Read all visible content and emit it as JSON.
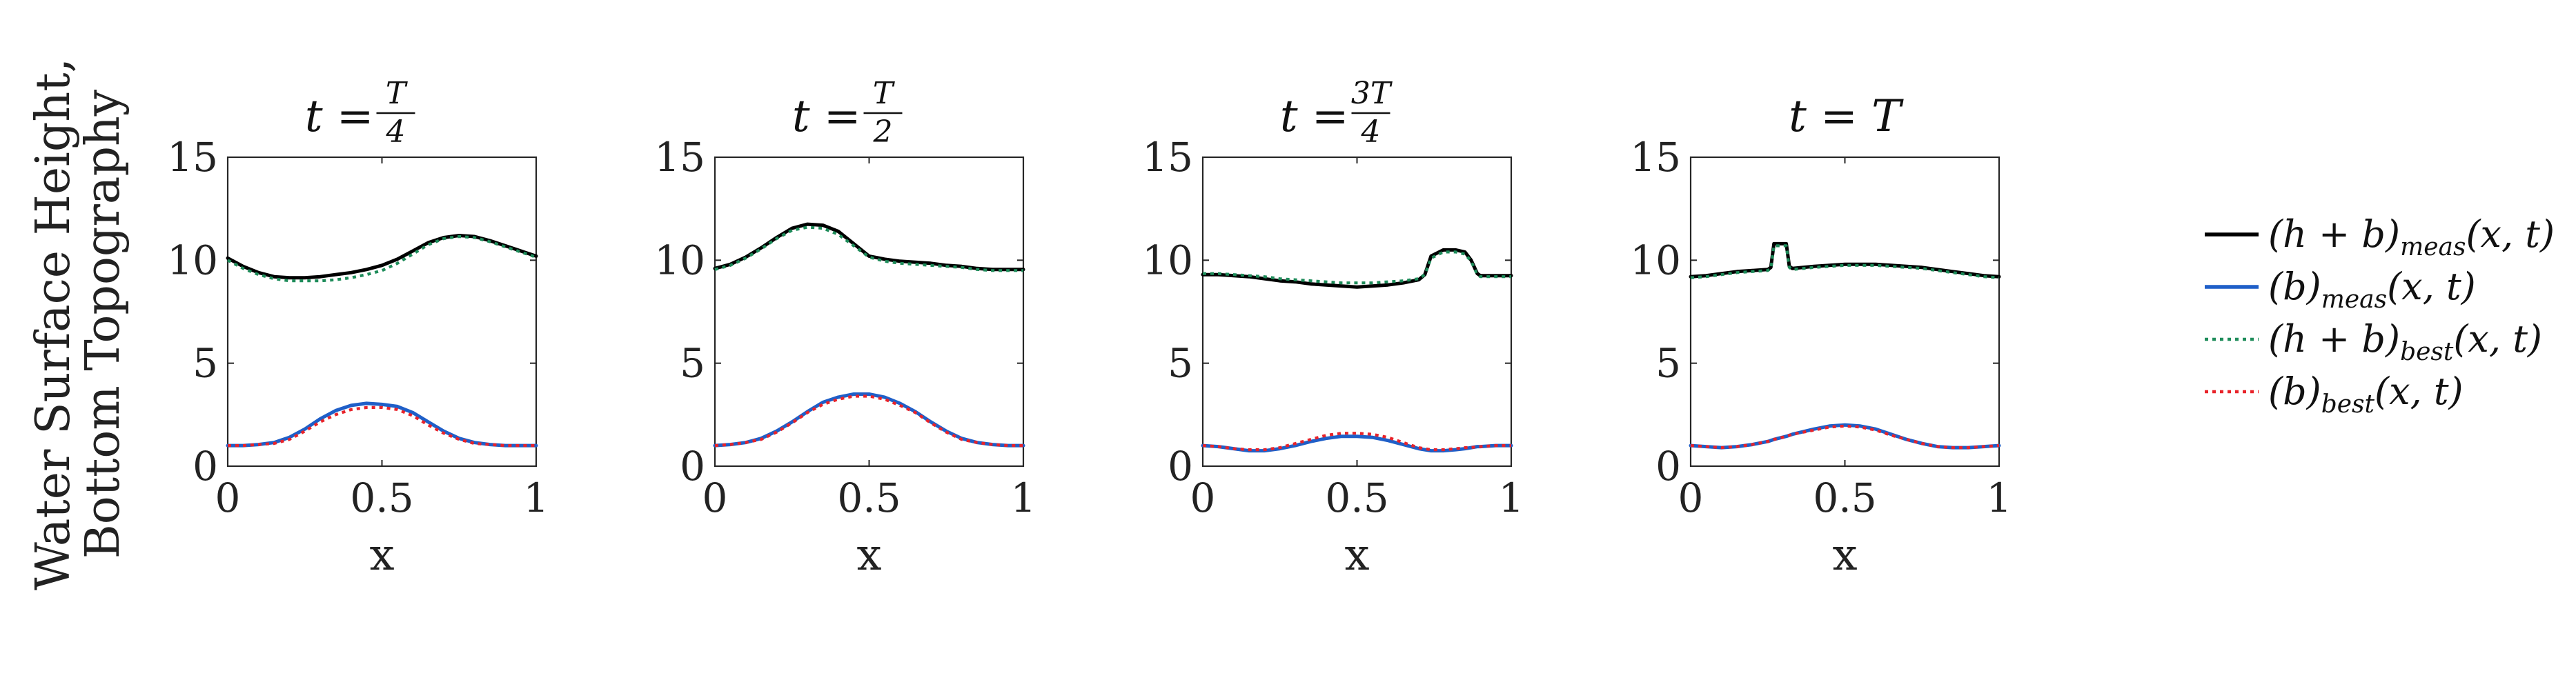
{
  "figure": {
    "ylabel_line1": "Water Surface Height,",
    "ylabel_line2": "Bottom Topography"
  },
  "colors": {
    "meas_total": "#000000",
    "meas_bottom": "#1f5fc8",
    "best_total": "#1e8c5a",
    "best_bottom": "#e8232a"
  },
  "legend": {
    "placement": "right",
    "entries": [
      {
        "key": "meas_total",
        "label": "(h + b)",
        "sub": "meas",
        "args": "(x, t)",
        "style": "solid"
      },
      {
        "key": "meas_bottom",
        "label": "(b)",
        "sub": "meas",
        "args": "(x, t)",
        "style": "solid"
      },
      {
        "key": "best_total",
        "label": "(h + b)",
        "sub": "best",
        "args": "(x, t)",
        "style": "dotted"
      },
      {
        "key": "best_bottom",
        "label": "(b)",
        "sub": "best",
        "args": "(x, t)",
        "style": "dotted"
      }
    ]
  },
  "chart_data": [
    {
      "type": "line",
      "title_prefix": "t =",
      "title_num": "T",
      "title_den": "4",
      "xlabel": "x",
      "xlim": [
        0,
        1
      ],
      "ylim": [
        0,
        15
      ],
      "xticks": [
        "0",
        "0.5",
        "1"
      ],
      "yticks": [
        "0",
        "5",
        "10",
        "15"
      ],
      "x": [
        0,
        0.05,
        0.1,
        0.15,
        0.2,
        0.25,
        0.3,
        0.35,
        0.4,
        0.45,
        0.5,
        0.55,
        0.6,
        0.65,
        0.7,
        0.75,
        0.8,
        0.85,
        0.9,
        0.95,
        1
      ],
      "series": [
        {
          "key": "meas_total",
          "values": [
            10.1,
            9.7,
            9.4,
            9.2,
            9.15,
            9.15,
            9.2,
            9.3,
            9.4,
            9.55,
            9.75,
            10.05,
            10.45,
            10.85,
            11.1,
            11.2,
            11.15,
            10.95,
            10.7,
            10.45,
            10.2
          ]
        },
        {
          "key": "meas_bottom",
          "values": [
            1,
            1,
            1.05,
            1.15,
            1.4,
            1.8,
            2.3,
            2.7,
            2.95,
            3.05,
            3.0,
            2.9,
            2.6,
            2.15,
            1.7,
            1.35,
            1.15,
            1.05,
            1,
            1,
            1
          ]
        },
        {
          "key": "best_total",
          "values": [
            10.0,
            9.6,
            9.3,
            9.1,
            9.0,
            9.0,
            9.0,
            9.05,
            9.15,
            9.3,
            9.5,
            9.85,
            10.3,
            10.75,
            11.05,
            11.15,
            11.1,
            10.9,
            10.65,
            10.4,
            10.15
          ]
        },
        {
          "key": "best_bottom",
          "values": [
            1,
            1,
            1.05,
            1.1,
            1.3,
            1.7,
            2.15,
            2.5,
            2.75,
            2.85,
            2.85,
            2.75,
            2.45,
            2.0,
            1.6,
            1.3,
            1.1,
            1.05,
            1,
            1,
            1
          ]
        }
      ]
    },
    {
      "type": "line",
      "title_prefix": "t =",
      "title_num": "T",
      "title_den": "2",
      "xlabel": "x",
      "xlim": [
        0,
        1
      ],
      "ylim": [
        0,
        15
      ],
      "xticks": [
        "0",
        "0.5",
        "1"
      ],
      "yticks": [
        "0",
        "5",
        "10",
        "15"
      ],
      "x": [
        0,
        0.05,
        0.1,
        0.15,
        0.2,
        0.25,
        0.3,
        0.35,
        0.4,
        0.45,
        0.5,
        0.55,
        0.6,
        0.65,
        0.7,
        0.75,
        0.8,
        0.85,
        0.9,
        0.95,
        1
      ],
      "series": [
        {
          "key": "meas_total",
          "values": [
            9.6,
            9.8,
            10.15,
            10.6,
            11.1,
            11.55,
            11.75,
            11.7,
            11.4,
            10.8,
            10.2,
            10.05,
            9.95,
            9.9,
            9.85,
            9.75,
            9.7,
            9.6,
            9.55,
            9.55,
            9.55
          ]
        },
        {
          "key": "meas_bottom",
          "values": [
            1,
            1.05,
            1.15,
            1.35,
            1.7,
            2.15,
            2.65,
            3.1,
            3.35,
            3.5,
            3.5,
            3.35,
            3.05,
            2.65,
            2.15,
            1.7,
            1.35,
            1.15,
            1.05,
            1,
            1
          ]
        },
        {
          "key": "best_total",
          "values": [
            9.55,
            9.75,
            10.1,
            10.55,
            11.05,
            11.45,
            11.6,
            11.55,
            11.25,
            10.7,
            10.15,
            9.95,
            9.85,
            9.8,
            9.75,
            9.7,
            9.65,
            9.55,
            9.5,
            9.5,
            9.5
          ]
        },
        {
          "key": "best_bottom",
          "values": [
            1,
            1.05,
            1.15,
            1.3,
            1.65,
            2.1,
            2.6,
            3.0,
            3.25,
            3.4,
            3.4,
            3.25,
            2.95,
            2.6,
            2.1,
            1.65,
            1.3,
            1.15,
            1.05,
            1,
            1
          ]
        }
      ]
    },
    {
      "type": "line",
      "title_prefix": "t =",
      "title_num": "3T",
      "title_den": "4",
      "xlabel": "x",
      "xlim": [
        0,
        1
      ],
      "ylim": [
        0,
        15
      ],
      "xticks": [
        "0",
        "0.5",
        "1"
      ],
      "yticks": [
        "0",
        "5",
        "10",
        "15"
      ],
      "x": [
        0,
        0.05,
        0.1,
        0.15,
        0.2,
        0.25,
        0.3,
        0.35,
        0.4,
        0.45,
        0.5,
        0.55,
        0.6,
        0.65,
        0.7,
        0.72,
        0.74,
        0.78,
        0.82,
        0.85,
        0.87,
        0.89,
        0.9,
        0.95,
        1
      ],
      "series": [
        {
          "key": "meas_total",
          "values": [
            9.3,
            9.3,
            9.25,
            9.2,
            9.1,
            9.0,
            8.95,
            8.85,
            8.8,
            8.75,
            8.7,
            8.75,
            8.8,
            8.9,
            9.05,
            9.3,
            10.2,
            10.5,
            10.5,
            10.4,
            10.0,
            9.35,
            9.25,
            9.25,
            9.25
          ]
        },
        {
          "key": "meas_bottom",
          "values": [
            1,
            0.95,
            0.85,
            0.75,
            0.75,
            0.85,
            1.0,
            1.2,
            1.35,
            1.45,
            1.45,
            1.4,
            1.25,
            1.05,
            0.85,
            0.8,
            0.75,
            0.75,
            0.8,
            0.85,
            0.9,
            0.95,
            0.95,
            1,
            1
          ]
        },
        {
          "key": "best_total",
          "values": [
            9.35,
            9.35,
            9.3,
            9.25,
            9.2,
            9.1,
            9.05,
            9.0,
            8.95,
            8.9,
            8.9,
            8.9,
            8.95,
            9.0,
            9.1,
            9.3,
            10.1,
            10.4,
            10.4,
            10.3,
            9.95,
            9.3,
            9.2,
            9.2,
            9.2
          ]
        },
        {
          "key": "best_bottom",
          "values": [
            1,
            0.95,
            0.85,
            0.8,
            0.8,
            0.9,
            1.1,
            1.3,
            1.5,
            1.6,
            1.6,
            1.55,
            1.4,
            1.15,
            0.9,
            0.85,
            0.8,
            0.8,
            0.85,
            0.9,
            0.9,
            0.95,
            0.95,
            1,
            1
          ]
        }
      ]
    },
    {
      "type": "line",
      "title_prefix": "t =",
      "title_num": "",
      "title_den": "",
      "title_value": "T",
      "xlabel": "x",
      "xlim": [
        0,
        1
      ],
      "ylim": [
        0,
        15
      ],
      "xticks": [
        "0",
        "0.5",
        "1"
      ],
      "yticks": [
        "0",
        "5",
        "10",
        "15"
      ],
      "x": [
        0,
        0.05,
        0.1,
        0.15,
        0.2,
        0.25,
        0.26,
        0.27,
        0.31,
        0.32,
        0.33,
        0.4,
        0.45,
        0.5,
        0.55,
        0.6,
        0.65,
        0.7,
        0.75,
        0.8,
        0.85,
        0.9,
        0.95,
        1
      ],
      "series": [
        {
          "key": "meas_total",
          "values": [
            9.2,
            9.25,
            9.35,
            9.45,
            9.5,
            9.55,
            9.65,
            10.8,
            10.8,
            9.7,
            9.6,
            9.7,
            9.75,
            9.8,
            9.8,
            9.8,
            9.75,
            9.7,
            9.65,
            9.55,
            9.45,
            9.35,
            9.25,
            9.2
          ]
        },
        {
          "key": "meas_bottom",
          "values": [
            1,
            0.95,
            0.9,
            0.95,
            1.05,
            1.2,
            1.25,
            1.3,
            1.45,
            1.5,
            1.55,
            1.8,
            1.95,
            2.0,
            1.95,
            1.8,
            1.55,
            1.3,
            1.1,
            0.95,
            0.9,
            0.9,
            0.95,
            1
          ]
        },
        {
          "key": "best_total",
          "values": [
            9.15,
            9.2,
            9.3,
            9.4,
            9.45,
            9.5,
            9.6,
            10.7,
            10.7,
            9.65,
            9.55,
            9.65,
            9.7,
            9.75,
            9.75,
            9.75,
            9.7,
            9.65,
            9.6,
            9.5,
            9.4,
            9.3,
            9.2,
            9.15
          ]
        },
        {
          "key": "best_bottom",
          "values": [
            1,
            0.95,
            0.9,
            0.95,
            1.05,
            1.2,
            1.25,
            1.3,
            1.45,
            1.5,
            1.55,
            1.75,
            1.9,
            1.95,
            1.9,
            1.75,
            1.5,
            1.3,
            1.1,
            0.95,
            0.9,
            0.9,
            0.95,
            1
          ]
        }
      ]
    }
  ]
}
